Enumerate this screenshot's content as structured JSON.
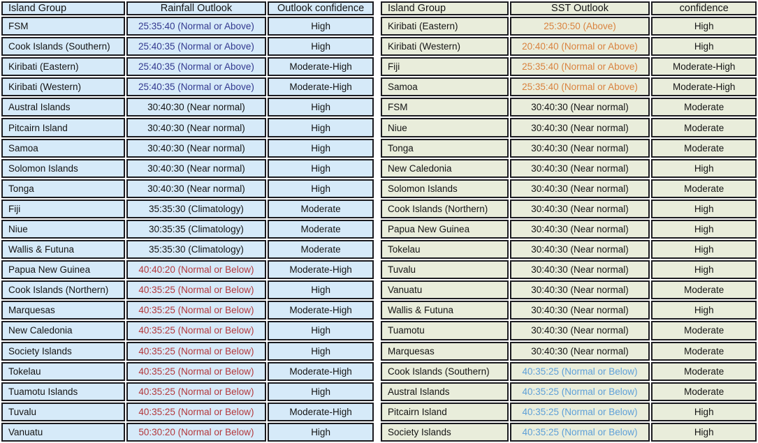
{
  "colors": {
    "left_cell_bg": "#d6eaf9",
    "right_cell_bg": "#e9eddb",
    "border": "#1b1b20",
    "black": "#141414",
    "blue": "#32388f",
    "red": "#b3383c",
    "orange": "#d9823e",
    "light_blue": "#5fa0d8"
  },
  "rainfall_table": {
    "headers": [
      "Island Group",
      "Rainfall Outlook",
      "Outlook confidence"
    ],
    "rows": [
      {
        "island": "FSM",
        "outlook": "25:35:40 (Normal or Above)",
        "tone": "blue",
        "confidence": "High"
      },
      {
        "island": "Cook Islands (Southern)",
        "outlook": "25:40:35 (Normal or Above)",
        "tone": "blue",
        "confidence": "High"
      },
      {
        "island": "Kiribati (Eastern)",
        "outlook": "25:40:35 (Normal or Above)",
        "tone": "blue",
        "confidence": "Moderate-High"
      },
      {
        "island": "Kiribati (Western)",
        "outlook": "25:40:35 (Normal or Above)",
        "tone": "blue",
        "confidence": "Moderate-High"
      },
      {
        "island": "Austral Islands",
        "outlook": "30:40:30 (Near normal)",
        "tone": "black",
        "confidence": "High"
      },
      {
        "island": "Pitcairn Island",
        "outlook": "30:40:30 (Near normal)",
        "tone": "black",
        "confidence": "High"
      },
      {
        "island": "Samoa",
        "outlook": "30:40:30 (Near normal)",
        "tone": "black",
        "confidence": "High"
      },
      {
        "island": "Solomon Islands",
        "outlook": "30:40:30 (Near normal)",
        "tone": "black",
        "confidence": "High"
      },
      {
        "island": "Tonga",
        "outlook": "30:40:30 (Near normal)",
        "tone": "black",
        "confidence": "High"
      },
      {
        "island": "Fiji",
        "outlook": "35:35:30 (Climatology)",
        "tone": "black",
        "confidence": "Moderate"
      },
      {
        "island": "Niue",
        "outlook": "30:35:35 (Climatology)",
        "tone": "black",
        "confidence": "Moderate"
      },
      {
        "island": "Wallis & Futuna",
        "outlook": "35:35:30 (Climatology)",
        "tone": "black",
        "confidence": "Moderate"
      },
      {
        "island": "Papua New Guinea",
        "outlook": "40:40:20 (Normal or Below)",
        "tone": "red",
        "confidence": "Moderate-High"
      },
      {
        "island": "Cook Islands (Northern)",
        "outlook": "40:35:25 (Normal or Below)",
        "tone": "red",
        "confidence": "High"
      },
      {
        "island": "Marquesas",
        "outlook": "40:35:25 (Normal or Below)",
        "tone": "red",
        "confidence": "Moderate-High"
      },
      {
        "island": "New Caledonia",
        "outlook": "40:35:25 (Normal or Below)",
        "tone": "red",
        "confidence": "High"
      },
      {
        "island": "Society Islands",
        "outlook": "40:35:25 (Normal or Below)",
        "tone": "red",
        "confidence": "High"
      },
      {
        "island": "Tokelau",
        "outlook": "40:35:25 (Normal or Below)",
        "tone": "red",
        "confidence": "Moderate-High"
      },
      {
        "island": "Tuamotu Islands",
        "outlook": "40:35:25 (Normal or Below)",
        "tone": "red",
        "confidence": "High"
      },
      {
        "island": "Tuvalu",
        "outlook": "40:35:25 (Normal or Below)",
        "tone": "red",
        "confidence": "Moderate-High"
      },
      {
        "island": "Vanuatu",
        "outlook": "50:30:20 (Normal or Below)",
        "tone": "red",
        "confidence": "High"
      }
    ]
  },
  "sst_table": {
    "headers": [
      "Island Group",
      "SST Outlook",
      "confidence"
    ],
    "rows": [
      {
        "island": "Kiribati (Eastern)",
        "outlook": "25:30:50 (Above)",
        "tone": "orange",
        "confidence": "High"
      },
      {
        "island": "Kiribati (Western)",
        "outlook": "20:40:40 (Normal or Above)",
        "tone": "orange",
        "confidence": "High"
      },
      {
        "island": "Fiji",
        "outlook": "25:35:40 (Normal or Above)",
        "tone": "orange",
        "confidence": "Moderate-High"
      },
      {
        "island": "Samoa",
        "outlook": "25:35:40 (Normal or Above)",
        "tone": "orange",
        "confidence": "Moderate-High"
      },
      {
        "island": "FSM",
        "outlook": "30:40:30 (Near normal)",
        "tone": "black",
        "confidence": "Moderate"
      },
      {
        "island": "Niue",
        "outlook": "30:40:30 (Near normal)",
        "tone": "black",
        "confidence": "Moderate"
      },
      {
        "island": "Tonga",
        "outlook": "30:40:30 (Near normal)",
        "tone": "black",
        "confidence": "Moderate"
      },
      {
        "island": "New Caledonia",
        "outlook": "30:40:30 (Near normal)",
        "tone": "black",
        "confidence": "High"
      },
      {
        "island": "Solomon Islands",
        "outlook": "30:40:30 (Near normal)",
        "tone": "black",
        "confidence": "Moderate"
      },
      {
        "island": "Cook Islands (Northern)",
        "outlook": "30:40:30 (Near normal)",
        "tone": "black",
        "confidence": "High"
      },
      {
        "island": "Papua New Guinea",
        "outlook": "30:40:30 (Near normal)",
        "tone": "black",
        "confidence": "High"
      },
      {
        "island": "Tokelau",
        "outlook": "30:40:30 (Near normal)",
        "tone": "black",
        "confidence": "High"
      },
      {
        "island": "Tuvalu",
        "outlook": "30:40:30 (Near normal)",
        "tone": "black",
        "confidence": "High"
      },
      {
        "island": "Vanuatu",
        "outlook": "30:40:30 (Near normal)",
        "tone": "black",
        "confidence": "Moderate"
      },
      {
        "island": "Wallis & Futuna",
        "outlook": "30:40:30 (Near normal)",
        "tone": "black",
        "confidence": "High"
      },
      {
        "island": "Tuamotu",
        "outlook": "30:40:30 (Near normal)",
        "tone": "black",
        "confidence": "Moderate"
      },
      {
        "island": "Marquesas",
        "outlook": "30:40:30 (Near normal)",
        "tone": "black",
        "confidence": "Moderate"
      },
      {
        "island": "Cook Islands (Southern)",
        "outlook": "40:35:25 (Normal or Below)",
        "tone": "light_blue",
        "confidence": "Moderate"
      },
      {
        "island": "Austral Islands",
        "outlook": "40:35:25 (Normal or Below)",
        "tone": "light_blue",
        "confidence": "Moderate"
      },
      {
        "island": "Pitcairn Island",
        "outlook": "40:35:25 (Normal or Below)",
        "tone": "light_blue",
        "confidence": "High"
      },
      {
        "island": "Society Islands",
        "outlook": "40:35:25 (Normal or Below)",
        "tone": "light_blue",
        "confidence": "High"
      }
    ]
  }
}
